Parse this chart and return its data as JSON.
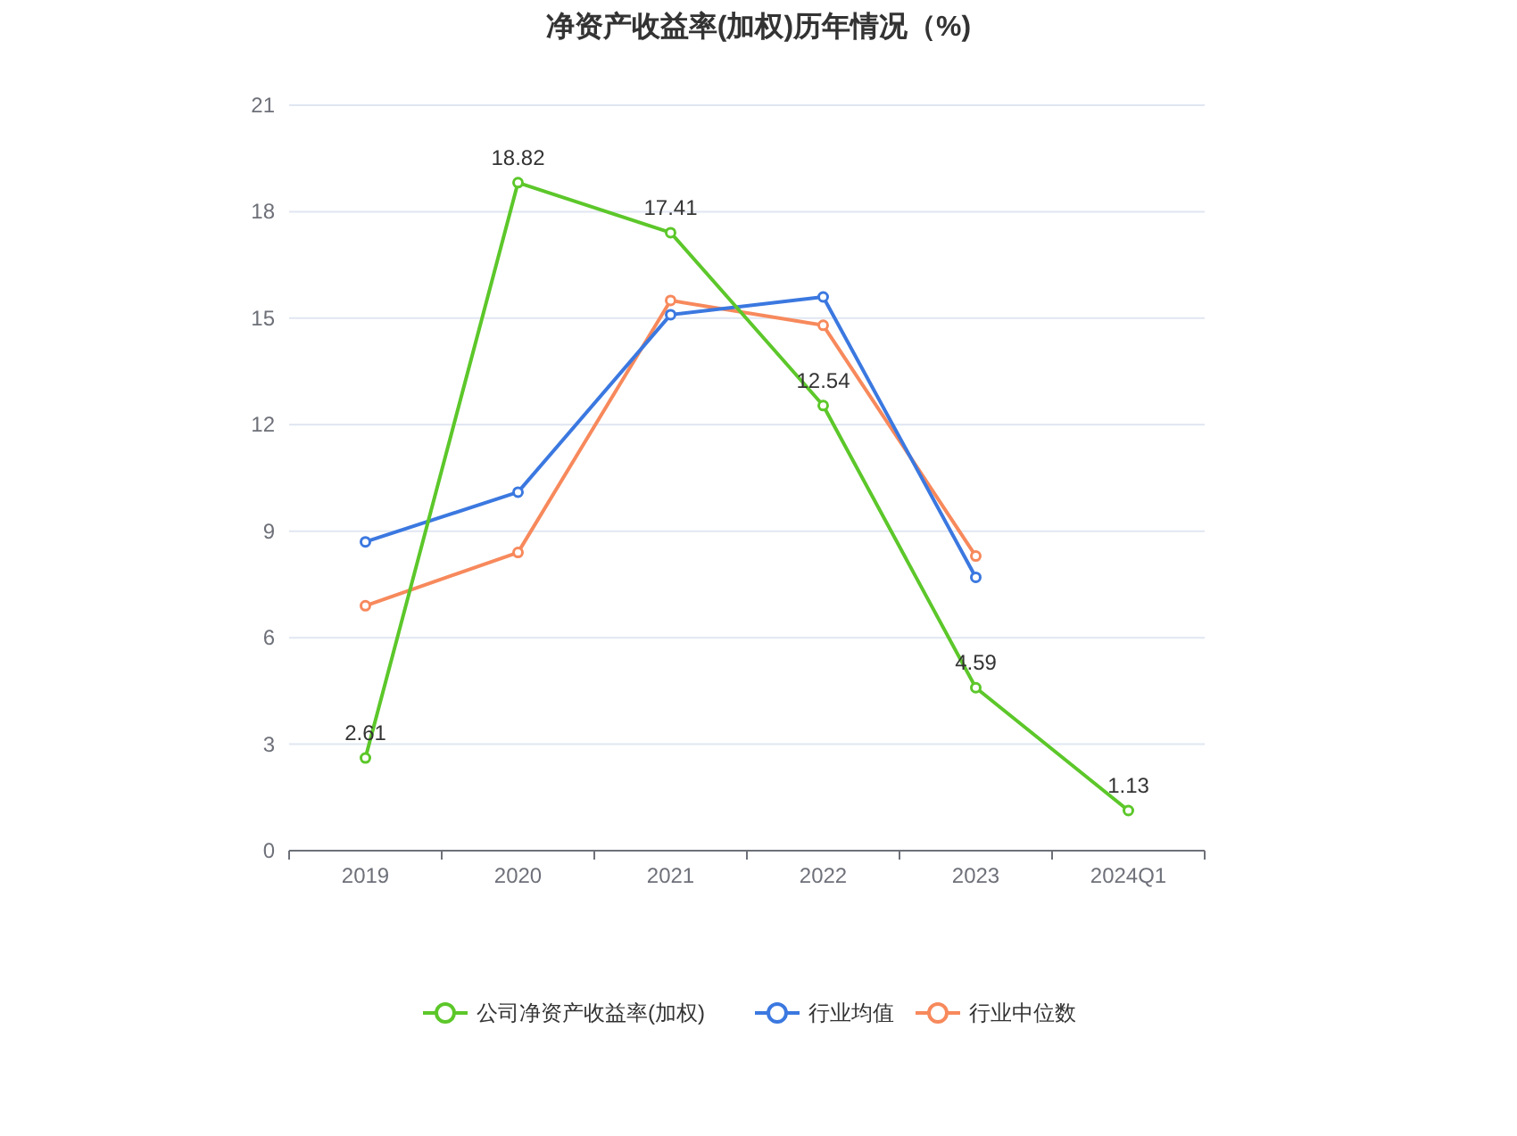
{
  "chart_data": {
    "type": "line",
    "title": "净资产收益率(加权)历年情况（%)",
    "categories": [
      "2019",
      "2020",
      "2021",
      "2022",
      "2023",
      "2024Q1"
    ],
    "series": [
      {
        "name": "公司净资产收益率(加权)",
        "color": "#5cc72a",
        "values": [
          2.61,
          18.82,
          17.41,
          12.54,
          4.59,
          1.13
        ],
        "value_labels": [
          "2.61",
          "18.82",
          "17.41",
          "12.54",
          "4.59",
          "1.13"
        ]
      },
      {
        "name": "行业均值",
        "color": "#3b78e0",
        "values": [
          8.7,
          10.1,
          15.1,
          15.6,
          7.7,
          null
        ]
      },
      {
        "name": "行业中位数",
        "color": "#f7895c",
        "values": [
          6.9,
          8.4,
          15.5,
          14.8,
          8.3,
          null
        ]
      }
    ],
    "ylim": [
      0,
      21
    ],
    "yticks": [
      0,
      3,
      6,
      9,
      12,
      15,
      18,
      21
    ],
    "grid": "y",
    "legend": "bottom",
    "marker": "circle"
  }
}
